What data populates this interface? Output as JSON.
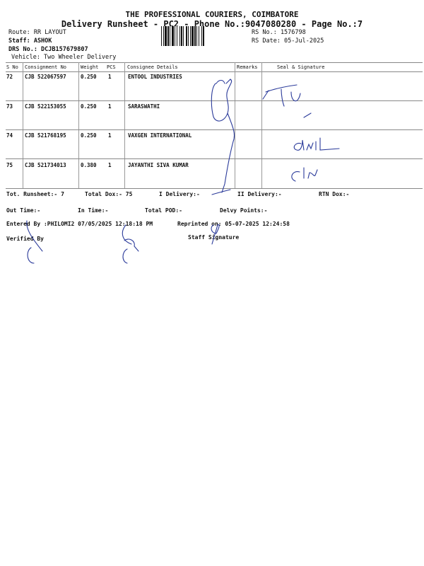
{
  "header": {
    "company": "THE PROFESSIONAL COURIERS, COIMBATORE",
    "subtitle": "Delivery Runsheet - PC2 - Phone No.:9047080280 - Page No.:7",
    "route": "Route: RR  LAYOUT",
    "staff": "Staff: ASHOK",
    "drs_no": "DRS No.: DCJB157679807",
    "vehicle": "Vehicle: Two Wheeler Delivery",
    "rs_no": "RS No.: 1576798",
    "rs_date": "RS Date: 05-Jul-2025"
  },
  "table": {
    "columns": [
      "S No",
      "Consignment No",
      "Weight",
      "PCS",
      "Consignee Details",
      "Remarks",
      "Seal & Signature"
    ],
    "rows": [
      {
        "sno": "72",
        "consignment": "CJB 522067597",
        "weight": "0.250",
        "pcs": "1",
        "consignee": "ENTOOL INDUSTRIES"
      },
      {
        "sno": "73",
        "consignment": "CJB 522153055",
        "weight": "0.250",
        "pcs": "1",
        "consignee": "SARASWATHI"
      },
      {
        "sno": "74",
        "consignment": "CJB 521768195",
        "weight": "0.250",
        "pcs": "1",
        "consignee": "VAXGEN INTERNATIONAL"
      },
      {
        "sno": "75",
        "consignment": "CJB 521734013",
        "weight": "0.380",
        "pcs": "1",
        "consignee": "JAYANTHI SIVA KUMAR"
      }
    ]
  },
  "footer": {
    "tot_runsheet": "Tot. Runsheet:- 7",
    "total_dox": "Total Dox:-   75",
    "i_delivery": "I Delivery:-",
    "ii_delivery": "II Delivery:-",
    "rtn_dox": "RTN Dox:-",
    "out_time": "Out Time:-",
    "in_time": "In Time:-",
    "total_pod": "Total POD:-",
    "delvy_points": "Delvy Points:-",
    "entered_by": "Entered By :PHILOMI2 07/05/2025 12:18:18 PM",
    "reprinted_on": "Reprinted on: 05-07-2025 12:24:58",
    "verified_by": "Verified By",
    "staff_signature": "Staff Signature"
  },
  "colors": {
    "ink": "#2a3a9a",
    "text": "#111111"
  }
}
